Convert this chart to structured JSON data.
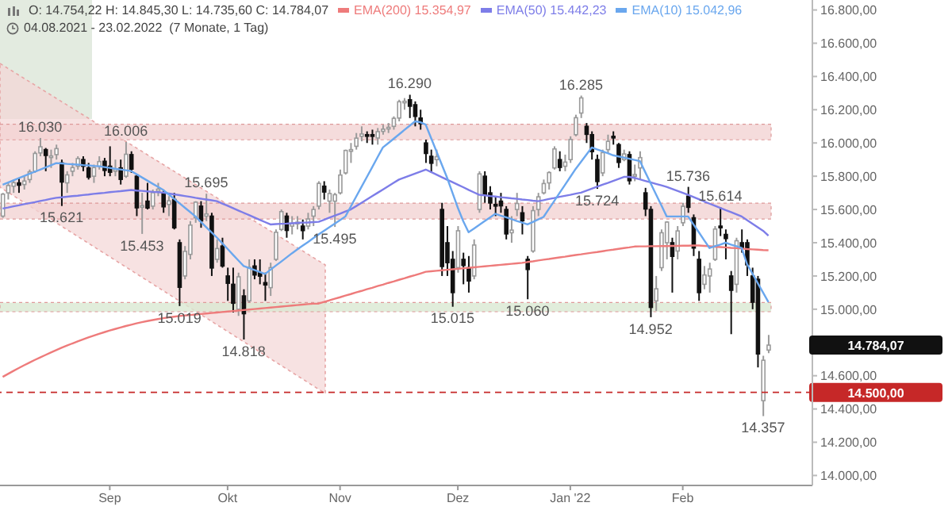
{
  "chart_data": {
    "type": "candlestick",
    "title": "O: 14.754,22 H: 14.845,30 L: 14.735,60 C: 14.784,07",
    "subtitle": "04.08.2021 - 23.02.2022  (7 Monate, 1 Tag)",
    "categories": [
      null,
      null,
      null,
      null,
      null,
      null,
      null,
      null,
      null,
      null,
      null,
      null,
      null,
      null,
      null,
      null,
      null,
      null,
      null,
      null,
      "Sep",
      null,
      null,
      null,
      null,
      null,
      null,
      null,
      null,
      null,
      null,
      null,
      null,
      null,
      null,
      null,
      null,
      null,
      null,
      null,
      null,
      null,
      "Okt",
      null,
      null,
      null,
      null,
      null,
      null,
      null,
      null,
      null,
      null,
      null,
      null,
      null,
      null,
      null,
      null,
      null,
      null,
      null,
      null,
      "Nov",
      null,
      null,
      null,
      null,
      null,
      null,
      null,
      null,
      null,
      null,
      null,
      null,
      null,
      null,
      null,
      null,
      null,
      null,
      null,
      null,
      null,
      "Dez",
      null,
      null,
      null,
      null,
      null,
      null,
      null,
      null,
      null,
      null,
      null,
      null,
      null,
      null,
      null,
      null,
      null,
      null,
      null,
      null,
      "Jan '22",
      null,
      null,
      null,
      null,
      null,
      null,
      null,
      null,
      null,
      null,
      null,
      null,
      null,
      null,
      null,
      null,
      null,
      null,
      null,
      null,
      "Feb",
      null,
      null,
      null,
      null,
      null,
      null,
      null,
      null,
      null,
      null,
      null,
      null,
      null,
      null,
      null,
      null
    ],
    "ohlc": [
      [
        15560,
        15700,
        15550,
        15692
      ],
      [
        15700,
        15760,
        15660,
        15744
      ],
      [
        15740,
        15780,
        15700,
        15761
      ],
      [
        15760,
        15790,
        15700,
        15746
      ],
      [
        15750,
        15800,
        15720,
        15771
      ],
      [
        15780,
        15840,
        15760,
        15826
      ],
      [
        15830,
        15950,
        15820,
        15937
      ],
      [
        15940,
        16030,
        15920,
        15977
      ],
      [
        15960,
        15970,
        15830,
        15925
      ],
      [
        15920,
        15960,
        15850,
        15922
      ],
      [
        15930,
        15990,
        15900,
        15966
      ],
      [
        15880,
        15900,
        15621,
        15765
      ],
      [
        15760,
        15830,
        15700,
        15808
      ],
      [
        15830,
        15880,
        15800,
        15852
      ],
      [
        15860,
        15920,
        15840,
        15906
      ],
      [
        15900,
        15920,
        15830,
        15860
      ],
      [
        15850,
        15880,
        15780,
        15794
      ],
      [
        15800,
        15870,
        15760,
        15852
      ],
      [
        15860,
        15920,
        15840,
        15888
      ],
      [
        15890,
        15910,
        15800,
        15835
      ],
      [
        15860,
        15980,
        15800,
        15824
      ],
      [
        15830,
        15900,
        15800,
        15841
      ],
      [
        15850,
        15900,
        15750,
        15781
      ],
      [
        15800,
        16006,
        15790,
        15932
      ],
      [
        15930,
        15950,
        15820,
        15843
      ],
      [
        15800,
        15810,
        15560,
        15610
      ],
      [
        15620,
        15700,
        15453,
        15623
      ],
      [
        15650,
        15760,
        15600,
        15609
      ],
      [
        15620,
        15720,
        15600,
        15701
      ],
      [
        15710,
        15760,
        15680,
        15722
      ],
      [
        15700,
        15720,
        15580,
        15616
      ],
      [
        15630,
        15680,
        15560,
        15652
      ],
      [
        15660,
        15700,
        15480,
        15490
      ],
      [
        15400,
        15420,
        15019,
        15132
      ],
      [
        15200,
        15380,
        15180,
        15348
      ],
      [
        15330,
        15530,
        15300,
        15506
      ],
      [
        15550,
        15650,
        15520,
        15644
      ],
      [
        15620,
        15650,
        15490,
        15531
      ],
      [
        15560,
        15695,
        15530,
        15573
      ],
      [
        15560,
        15580,
        15200,
        15248
      ],
      [
        15300,
        15420,
        15280,
        15365
      ],
      [
        15380,
        15430,
        15250,
        15260
      ],
      [
        15200,
        15250,
        15050,
        15156
      ],
      [
        15150,
        15250,
        14980,
        15036
      ],
      [
        15000,
        15220,
        14960,
        15195
      ],
      [
        15080,
        15120,
        14818,
        14973
      ],
      [
        15050,
        15300,
        15040,
        15252
      ],
      [
        15260,
        15300,
        15180,
        15206
      ],
      [
        15220,
        15300,
        15150,
        15199
      ],
      [
        15160,
        15220,
        15050,
        15146
      ],
      [
        15130,
        15280,
        15080,
        15250
      ],
      [
        15300,
        15480,
        15290,
        15463
      ],
      [
        15480,
        15600,
        15470,
        15587
      ],
      [
        15560,
        15580,
        15430,
        15474
      ],
      [
        15500,
        15560,
        15450,
        15516
      ],
      [
        15520,
        15560,
        15480,
        15523
      ],
      [
        15500,
        15540,
        15420,
        15473
      ],
      [
        15500,
        15580,
        15480,
        15543
      ],
      [
        15560,
        15620,
        15500,
        15600
      ],
      [
        15620,
        15770,
        15600,
        15757
      ],
      [
        15740,
        15770,
        15660,
        15705
      ],
      [
        15650,
        15720,
        15580,
        15696
      ],
      [
        15650,
        15700,
        15495,
        15689
      ],
      [
        15700,
        15840,
        15690,
        15807
      ],
      [
        15820,
        15960,
        15810,
        15955
      ],
      [
        15950,
        16000,
        15880,
        15960
      ],
      [
        15980,
        16060,
        15960,
        16029
      ],
      [
        16040,
        16100,
        16010,
        16054
      ],
      [
        16050,
        16070,
        16000,
        16047
      ],
      [
        16050,
        16080,
        15990,
        16040
      ],
      [
        16030,
        16090,
        15990,
        16068
      ],
      [
        16070,
        16110,
        16050,
        16083
      ],
      [
        16090,
        16120,
        16060,
        16094
      ],
      [
        16100,
        16160,
        16080,
        16148
      ],
      [
        16150,
        16260,
        16130,
        16248
      ],
      [
        16250,
        16270,
        16200,
        16251
      ],
      [
        16260,
        16290,
        16150,
        16221
      ],
      [
        16230,
        16250,
        16100,
        16160
      ],
      [
        16150,
        16200,
        16080,
        16116
      ],
      [
        16000,
        16020,
        15880,
        15937
      ],
      [
        15920,
        15960,
        15820,
        15878
      ],
      [
        15900,
        15960,
        15860,
        15917
      ],
      [
        15600,
        15640,
        15200,
        15257
      ],
      [
        15400,
        15500,
        15200,
        15280
      ],
      [
        15300,
        15350,
        15015,
        15100
      ],
      [
        15250,
        15500,
        15220,
        15472
      ],
      [
        15300,
        15340,
        15150,
        15263
      ],
      [
        15250,
        15320,
        15100,
        15170
      ],
      [
        15200,
        15420,
        15180,
        15386
      ],
      [
        15600,
        15830,
        15580,
        15814
      ],
      [
        15800,
        15830,
        15640,
        15687
      ],
      [
        15700,
        15740,
        15600,
        15639
      ],
      [
        15630,
        15680,
        15560,
        15623
      ],
      [
        15650,
        15700,
        15580,
        15622
      ],
      [
        15600,
        15620,
        15420,
        15453
      ],
      [
        15460,
        15560,
        15400,
        15476
      ],
      [
        15600,
        15700,
        15560,
        15636
      ],
      [
        15580,
        15620,
        15450,
        15532
      ],
      [
        15300,
        15320,
        15060,
        15239
      ],
      [
        15350,
        15620,
        15340,
        15593
      ],
      [
        15600,
        15700,
        15560,
        15676
      ],
      [
        15700,
        15780,
        15690,
        15756
      ],
      [
        15760,
        15830,
        15720,
        15822
      ],
      [
        15850,
        15980,
        15840,
        15964
      ],
      [
        15900,
        15950,
        15830,
        15853
      ],
      [
        15860,
        15930,
        15830,
        15885
      ],
      [
        15900,
        16040,
        15880,
        16021
      ],
      [
        16050,
        16170,
        16040,
        16152
      ],
      [
        16180,
        16285,
        16150,
        16271
      ],
      [
        16100,
        16120,
        16000,
        16052
      ],
      [
        16050,
        16070,
        15900,
        15948
      ],
      [
        15900,
        15930,
        15724,
        15768
      ],
      [
        15820,
        15960,
        15800,
        15942
      ],
      [
        15960,
        16050,
        15940,
        16010
      ],
      [
        16040,
        16070,
        15990,
        16031
      ],
      [
        15990,
        16000,
        15850,
        15883
      ],
      [
        15900,
        15960,
        15890,
        15934
      ],
      [
        15930,
        15950,
        15750,
        15773
      ],
      [
        15800,
        15870,
        15770,
        15810
      ],
      [
        15850,
        15950,
        15780,
        15912
      ],
      [
        15700,
        15730,
        15560,
        15603
      ],
      [
        15600,
        15620,
        14952,
        15011
      ],
      [
        15050,
        15200,
        14990,
        15123
      ],
      [
        15250,
        15480,
        15230,
        15460
      ],
      [
        15400,
        15530,
        15300,
        15524
      ],
      [
        15400,
        15430,
        15100,
        15318
      ],
      [
        15350,
        15500,
        15300,
        15471
      ],
      [
        15520,
        15640,
        15500,
        15619
      ],
      [
        15680,
        15736,
        15580,
        15613
      ],
      [
        15550,
        15570,
        15320,
        15368
      ],
      [
        15300,
        15350,
        15050,
        15100
      ],
      [
        15150,
        15260,
        15120,
        15206
      ],
      [
        15200,
        15280,
        15100,
        15242
      ],
      [
        15300,
        15500,
        15290,
        15482
      ],
      [
        15500,
        15614,
        15440,
        15490
      ],
      [
        15450,
        15480,
        15300,
        15425
      ],
      [
        15200,
        15230,
        14850,
        15114
      ],
      [
        15150,
        15430,
        15100,
        15412
      ],
      [
        15400,
        15480,
        15340,
        15370
      ],
      [
        15400,
        15420,
        15200,
        15267
      ],
      [
        15200,
        15250,
        15000,
        15042
      ],
      [
        15180,
        15200,
        14650,
        14731
      ],
      [
        14450,
        14720,
        14357,
        14693
      ],
      [
        14754.22,
        14845.3,
        14735.6,
        14784.07
      ]
    ],
    "series": [
      {
        "type": "line",
        "name": "EMA(200) 15.354,97",
        "color": "#ee7b7b",
        "values": [
          14593,
          14611,
          14629,
          14646,
          14663,
          14679,
          14695,
          14710,
          14725,
          14740,
          14754,
          14768,
          14781,
          14794,
          14806,
          14818,
          14830,
          14841,
          14852,
          14862,
          14872,
          14881,
          14890,
          14899,
          14907,
          14915,
          14922,
          14929,
          14935,
          14941,
          14946,
          14951,
          14955,
          14959,
          14962,
          14965,
          14968,
          14971,
          14974,
          14977,
          14980,
          14983,
          14986,
          14989,
          14992,
          14995,
          14998,
          15001,
          15004,
          15007,
          15010,
          15013,
          15016,
          15019,
          15022,
          15025,
          15028,
          15031,
          15033,
          15034,
          15044,
          15053,
          15063,
          15072,
          15082,
          15091,
          15101,
          15110,
          15120,
          15129,
          15139,
          15148,
          15158,
          15167,
          15177,
          15186,
          15196,
          15205,
          15215,
          15225,
          15228,
          15231,
          15234,
          15237,
          15240,
          15243,
          15246,
          15249,
          15252,
          15255,
          15258,
          15261,
          15264,
          15267,
          15270,
          15273,
          15276,
          15279,
          15284,
          15288,
          15293,
          15298,
          15302,
          15307,
          15312,
          15316,
          15321,
          15326,
          15330,
          15335,
          15340,
          15344,
          15349,
          15354,
          15358,
          15363,
          15368,
          15372,
          15377,
          15378,
          15378,
          15379,
          15379,
          15380,
          15380,
          15381,
          15381,
          15382,
          15382,
          15383,
          15383,
          15381,
          15379,
          15376,
          15374,
          15372,
          15369,
          15367,
          15365,
          15362,
          15360,
          15358,
          15356,
          15355
        ]
      },
      {
        "type": "line",
        "name": "EMA(50) 15.442,23",
        "color": "#7d7de8",
        "values": [
          15606,
          15612,
          15619,
          15625,
          15632,
          15638,
          15644,
          15651,
          15657,
          15664,
          15670,
          15673,
          15677,
          15680,
          15683,
          15687,
          15690,
          15694,
          15697,
          15700,
          15704,
          15707,
          15710,
          15714,
          15717,
          15714,
          15712,
          15709,
          15706,
          15704,
          15701,
          15696,
          15691,
          15686,
          15681,
          15676,
          15670,
          15665,
          15660,
          15655,
          15650,
          15636,
          15622,
          15608,
          15594,
          15580,
          15566,
          15552,
          15538,
          15524,
          15510,
          15512,
          15514,
          15515,
          15517,
          15519,
          15521,
          15522,
          15524,
          15526,
          15538,
          15551,
          15563,
          15575,
          15588,
          15600,
          15620,
          15640,
          15660,
          15680,
          15700,
          15720,
          15740,
          15760,
          15780,
          15792,
          15804,
          15816,
          15828,
          15840,
          15825,
          15810,
          15794,
          15779,
          15764,
          15749,
          15734,
          15718,
          15703,
          15688,
          15685,
          15681,
          15678,
          15674,
          15671,
          15667,
          15664,
          15660,
          15657,
          15653,
          15650,
          15656,
          15663,
          15669,
          15676,
          15682,
          15688,
          15695,
          15701,
          15713,
          15725,
          15737,
          15749,
          15760,
          15772,
          15784,
          15796,
          15796,
          15790,
          15781,
          15772,
          15763,
          15754,
          15745,
          15736,
          15724,
          15712,
          15700,
          15688,
          15675,
          15662,
          15648,
          15635,
          15622,
          15609,
          15596,
          15584,
          15571,
          15558,
          15536,
          15515,
          15493,
          15472,
          15442
        ]
      },
      {
        "type": "line",
        "name": "EMA(10) 15.042,96",
        "color": "#6aa7ee",
        "values": [
          15749,
          15762,
          15775,
          15788,
          15801,
          15814,
          15827,
          15840,
          15853,
          15866,
          15879,
          15877,
          15874,
          15872,
          15870,
          15867,
          15865,
          15862,
          15860,
          15855,
          15850,
          15845,
          15841,
          15836,
          15831,
          15812,
          15793,
          15774,
          15755,
          15736,
          15717,
          15691,
          15664,
          15638,
          15611,
          15585,
          15558,
          15526,
          15494,
          15463,
          15431,
          15397,
          15363,
          15328,
          15294,
          15260,
          15248,
          15236,
          15224,
          15212,
          15237,
          15262,
          15286,
          15311,
          15336,
          15359,
          15382,
          15404,
          15427,
          15450,
          15472,
          15493,
          15515,
          15536,
          15558,
          15617,
          15677,
          15736,
          15795,
          15854,
          15914,
          15973,
          15999,
          16025,
          16051,
          16078,
          16104,
          16130,
          16125,
          16110,
          16030,
          15950,
          15870,
          15790,
          15700,
          15610,
          15530,
          15463,
          15485,
          15507,
          15530,
          15552,
          15574,
          15563,
          15553,
          15542,
          15531,
          15521,
          15510,
          15525,
          15540,
          15555,
          15603,
          15651,
          15700,
          15748,
          15796,
          15844,
          15887,
          15930,
          15973,
          15961,
          15950,
          15938,
          15926,
          15919,
          15912,
          15905,
          15898,
          15891,
          15824,
          15758,
          15691,
          15625,
          15558,
          15558,
          15558,
          15558,
          15558,
          15510,
          15463,
          15415,
          15368,
          15379,
          15389,
          15400,
          15389,
          15379,
          15368,
          15272,
          15215,
          15157,
          15100,
          15043
        ]
      }
    ],
    "ylim": [
      13940,
      16860
    ],
    "yticks": [
      {
        "value": 14000,
        "label": "14.000,00"
      },
      {
        "value": 14200,
        "label": "14.200,00"
      },
      {
        "value": 14400,
        "label": "14.400,00"
      },
      {
        "value": 14600,
        "label": "14.600,00"
      },
      {
        "value": 15000,
        "label": "15.000,00"
      },
      {
        "value": 15200,
        "label": "15.200,00"
      },
      {
        "value": 15400,
        "label": "15.400,00"
      },
      {
        "value": 15600,
        "label": "15.600,00"
      },
      {
        "value": 15800,
        "label": "15.800,00"
      },
      {
        "value": 16000,
        "label": "16.000,00"
      },
      {
        "value": 16200,
        "label": "16.200,00"
      },
      {
        "value": 16400,
        "label": "16.400,00"
      },
      {
        "value": 16600,
        "label": "16.600,00"
      },
      {
        "value": 16800,
        "label": "16.800,00"
      }
    ],
    "bands": [
      {
        "axis": "y",
        "from": 16019,
        "to": 16113,
        "color": "#f3d3d3"
      },
      {
        "axis": "y",
        "from": 15543,
        "to": 15638,
        "color": "#f3d3d3"
      },
      {
        "axis": "y",
        "from": 14985,
        "to": 15040,
        "color": "#d9e9d2"
      }
    ],
    "ref_lines": [
      {
        "axis": "y",
        "value": 14500,
        "label": "14.500,00",
        "color": "#c62828",
        "line_style": "dashed"
      }
    ],
    "annotations": [
      {
        "text": "16.030",
        "y": 16030
      },
      {
        "text": "16.006",
        "y": 16006
      },
      {
        "text": "15.621",
        "y": 15621
      },
      {
        "text": "15.453",
        "y": 15453
      },
      {
        "text": "15.695",
        "y": 15695
      },
      {
        "text": "15.019",
        "y": 15019
      },
      {
        "text": "14.818",
        "y": 14818
      },
      {
        "text": "15.495",
        "y": 15495
      },
      {
        "text": "16.290",
        "y": 16290
      },
      {
        "text": "15.015",
        "y": 15015
      },
      {
        "text": "15.060",
        "y": 15060
      },
      {
        "text": "16.285",
        "y": 16285
      },
      {
        "text": "15.724",
        "y": 15724
      },
      {
        "text": "14.952",
        "y": 14952
      },
      {
        "text": "15.736",
        "y": 15736
      },
      {
        "text": "15.614",
        "y": 15614
      },
      {
        "text": "14.357",
        "y": 14357
      },
      "14.784,07"
    ],
    "legend": "top",
    "marker": "none",
    "line_style": "solid"
  }
}
